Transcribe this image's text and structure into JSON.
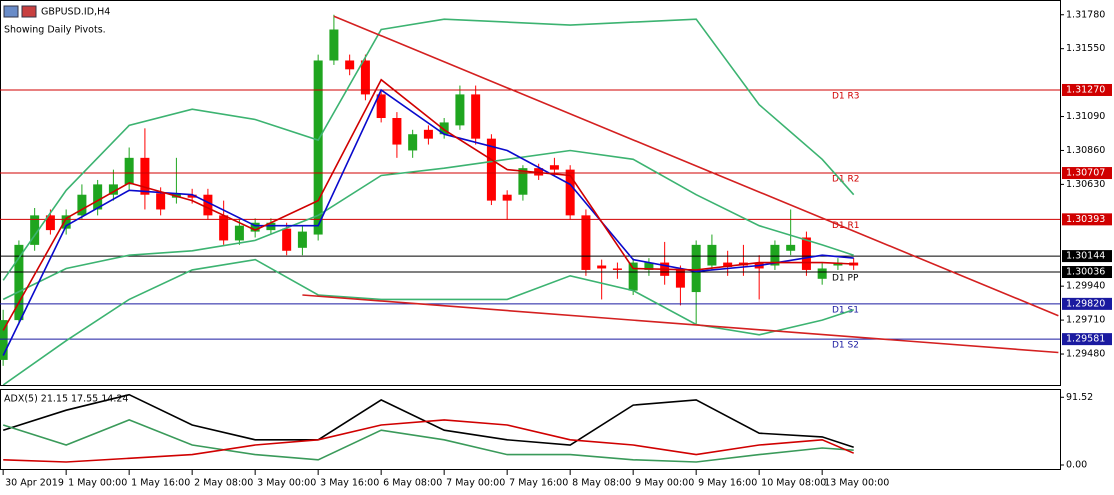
{
  "chart_data": [
    {
      "type": "candlestick",
      "title": "GBPUSD.ID,H4",
      "subtitle": "Showing Daily Pivots.",
      "x": [
        0,
        1,
        2,
        3,
        4,
        5,
        6,
        7,
        8,
        9,
        10,
        11,
        12,
        13,
        14,
        15,
        16,
        17,
        18,
        19,
        20,
        21,
        22,
        23,
        24,
        25,
        26,
        27,
        28,
        29,
        30,
        31,
        32,
        33,
        34,
        35,
        36,
        37,
        38,
        39,
        40,
        41,
        42,
        43,
        44,
        45,
        46,
        47,
        48,
        49,
        50,
        51,
        52,
        53,
        54
      ],
      "open": [
        1.2944,
        1.2971,
        1.3022,
        1.3042,
        1.3033,
        1.3042,
        1.3046,
        1.3056,
        1.3063,
        1.3081,
        1.3057,
        1.3054,
        1.3056,
        1.3056,
        1.3042,
        1.3025,
        1.3031,
        1.3032,
        1.3033,
        1.302,
        1.3029,
        1.3147,
        1.3147,
        1.3147,
        1.3124,
        1.3108,
        1.3086,
        1.31,
        1.3097,
        1.3103,
        1.3124,
        1.3094,
        1.3056,
        1.3056,
        1.3074,
        1.3076,
        1.3073,
        1.3042,
        1.3008,
        1.3006,
        1.2991,
        1.3005,
        1.301,
        1.3005,
        1.299,
        1.3008,
        1.301,
        1.301,
        1.301,
        1.3008,
        1.3018,
        1.3027,
        1.2999,
        1.3008,
        1.301
      ],
      "high": [
        1.2978,
        1.3025,
        1.3047,
        1.3046,
        1.3046,
        1.3063,
        1.3066,
        1.3073,
        1.3088,
        1.3101,
        1.3061,
        1.3081,
        1.306,
        1.306,
        1.3052,
        1.3039,
        1.304,
        1.304,
        1.3037,
        1.3035,
        1.3151,
        1.3178,
        1.3151,
        1.3151,
        1.3127,
        1.3112,
        1.31,
        1.3103,
        1.3108,
        1.313,
        1.313,
        1.3097,
        1.3059,
        1.3076,
        1.3077,
        1.3081,
        1.3076,
        1.3046,
        1.3012,
        1.301,
        1.3013,
        1.3013,
        1.3024,
        1.3008,
        1.3025,
        1.3029,
        1.3018,
        1.3022,
        1.3015,
        1.3025,
        1.3046,
        1.3031,
        1.301,
        1.3013,
        1.3013
      ],
      "low": [
        1.294,
        1.2968,
        1.3018,
        1.3029,
        1.3029,
        1.3039,
        1.3042,
        1.3052,
        1.3059,
        1.3046,
        1.3042,
        1.305,
        1.305,
        1.3039,
        1.3022,
        1.3022,
        1.3027,
        1.3029,
        1.3015,
        1.3015,
        1.3025,
        1.3144,
        1.3137,
        1.312,
        1.3105,
        1.3081,
        1.3081,
        1.309,
        1.3094,
        1.31,
        1.309,
        1.3049,
        1.3039,
        1.3052,
        1.3066,
        1.3069,
        1.3039,
        1.3001,
        1.2985,
        1.2999,
        1.2988,
        1.3001,
        1.2995,
        1.2981,
        1.2968,
        1.3005,
        1.3001,
        1.3001,
        1.2985,
        1.3005,
        1.3015,
        1.3001,
        1.2995,
        1.3005,
        1.3005
      ],
      "close": [
        1.2971,
        1.3022,
        1.3042,
        1.3032,
        1.3042,
        1.3056,
        1.3063,
        1.3063,
        1.3081,
        1.3056,
        1.3046,
        1.3057,
        1.3054,
        1.3042,
        1.3025,
        1.3035,
        1.3037,
        1.3037,
        1.3018,
        1.3031,
        1.3147,
        1.3168,
        1.3141,
        1.3124,
        1.3108,
        1.309,
        1.3097,
        1.3094,
        1.3105,
        1.3124,
        1.3094,
        1.3052,
        1.3052,
        1.3074,
        1.3069,
        1.3073,
        1.3042,
        1.3005,
        1.3006,
        1.3005,
        1.301,
        1.301,
        1.3001,
        1.2993,
        1.3022,
        1.3022,
        1.3007,
        1.3008,
        1.3006,
        1.3022,
        1.3022,
        1.3005,
        1.3006,
        1.301,
        1.3008
      ],
      "up_color": "#1fa51f",
      "down_color": "#ff0000",
      "series": [
        {
          "color": "#3cb371",
          "x": [
            0,
            4,
            8,
            12,
            16,
            20,
            24,
            28,
            32,
            36,
            40,
            44,
            48,
            52,
            54
          ],
          "values": [
            1.2998,
            1.3059,
            1.3103,
            1.3114,
            1.3107,
            1.3093,
            1.3168,
            1.3175,
            1.3173,
            1.3171,
            1.3173,
            1.3175,
            1.3117,
            1.308,
            1.3056
          ]
        },
        {
          "color": "#3cb371",
          "x": [
            0,
            4,
            8,
            12,
            16,
            20,
            24,
            28,
            32,
            36,
            40,
            44,
            48,
            52,
            54
          ],
          "values": [
            1.2985,
            1.3006,
            1.3015,
            1.3018,
            1.3025,
            1.3042,
            1.3069,
            1.3074,
            1.308,
            1.3086,
            1.308,
            1.3056,
            1.3035,
            1.3022,
            1.3015
          ]
        },
        {
          "color": "#3cb371",
          "x": [
            0,
            4,
            8,
            12,
            16,
            20,
            24,
            28,
            32,
            36,
            40,
            44,
            48,
            52,
            54
          ],
          "values": [
            1.2927,
            1.2957,
            1.2985,
            1.3005,
            1.3012,
            1.2988,
            1.2985,
            1.2985,
            1.2985,
            1.3001,
            1.2991,
            1.2968,
            1.2961,
            1.2971,
            1.2978
          ]
        },
        {
          "color": "#0a0acc",
          "x": [
            0,
            4,
            8,
            12,
            16,
            20,
            24,
            28,
            32,
            36,
            40,
            44,
            48,
            52,
            54
          ],
          "values": [
            1.2947,
            1.3035,
            1.3059,
            1.3056,
            1.3035,
            1.3035,
            1.3127,
            1.3097,
            1.3086,
            1.3063,
            1.3012,
            1.3004,
            1.3008,
            1.3015,
            1.3013
          ]
        },
        {
          "color": "#d00000",
          "x": [
            0,
            4,
            8,
            12,
            16,
            20,
            24,
            28,
            32,
            36,
            40,
            44,
            48,
            52,
            54
          ],
          "values": [
            1.2964,
            1.304,
            1.3064,
            1.3052,
            1.3032,
            1.3052,
            1.3134,
            1.31,
            1.3073,
            1.3069,
            1.3006,
            1.3005,
            1.301,
            1.301,
            1.3009
          ]
        },
        {
          "color": "#d42020",
          "x": [
            21,
            67
          ],
          "values": [
            1.3177,
            1.2974
          ]
        },
        {
          "color": "#d42020",
          "x": [
            19,
            67
          ],
          "values": [
            1.2988,
            1.2949
          ]
        }
      ],
      "hlines": [
        {
          "name": "D1 R3",
          "value": 1.3127,
          "label": "1.31270",
          "color": "#d00000"
        },
        {
          "name": "D1 R2",
          "value": 1.30707,
          "label": "1.30707",
          "color": "#d00000"
        },
        {
          "name": "D1 R1",
          "value": 1.30393,
          "label": "1.30393",
          "color": "#d00000"
        },
        {
          "name": "D1 PP",
          "value": 1.30036,
          "label": "1.30036",
          "color": "#000000"
        },
        {
          "value": 1.30144,
          "label": "1.30144",
          "color": "#000000"
        },
        {
          "name": "D1 S1",
          "value": 1.2982,
          "label": "1.29820",
          "color": "#1a1aa0"
        },
        {
          "name": "D1 S2",
          "value": 1.29581,
          "label": "1.29581",
          "color": "#1a1aa0"
        }
      ],
      "xlim": [
        -0.2,
        67.1
      ],
      "ylim": [
        1.2927,
        1.3188
      ],
      "yticks": [
        {
          "value": 1.3178,
          "label": "1.31780"
        },
        {
          "value": 1.3155,
          "label": "1.31550"
        },
        {
          "value": 1.3109,
          "label": "1.31090"
        },
        {
          "value": 1.3086,
          "label": "1.30860"
        },
        {
          "value": 1.3063,
          "label": "1.30630"
        },
        {
          "value": 1.2994,
          "label": "1.29940"
        },
        {
          "value": 1.2971,
          "label": "1.29710"
        },
        {
          "value": 1.2948,
          "label": "1.29480"
        }
      ],
      "xticks": [
        {
          "value": 0,
          "label": "30 Apr 2019"
        },
        {
          "value": 4,
          "label": "1 May 00:00"
        },
        {
          "value": 8,
          "label": "1 May 16:00"
        },
        {
          "value": 12,
          "label": "2 May 08:00"
        },
        {
          "value": 16,
          "label": "3 May 00:00"
        },
        {
          "value": 20,
          "label": "3 May 16:00"
        },
        {
          "value": 24,
          "label": "6 May 08:00"
        },
        {
          "value": 28,
          "label": "7 May 00:00"
        },
        {
          "value": 32,
          "label": "7 May 16:00"
        },
        {
          "value": 36,
          "label": "8 May 08:00"
        },
        {
          "value": 40,
          "label": "9 May 00:00"
        },
        {
          "value": 44,
          "label": "9 May 16:00"
        },
        {
          "value": 48,
          "label": "10 May 08:00"
        },
        {
          "value": 52,
          "label": "13 May 00:00"
        }
      ]
    },
    {
      "type": "line",
      "title": "ADX(5) 21.15 17.55 14.24",
      "series": [
        {
          "color": "#000000",
          "x": [
            0,
            4,
            8,
            12,
            16,
            20,
            24,
            28,
            32,
            36,
            40,
            44,
            48,
            52,
            54
          ],
          "values": [
            47,
            74,
            95,
            54,
            34,
            34,
            88,
            47,
            34,
            27,
            81,
            88,
            43,
            38,
            24
          ]
        },
        {
          "color": "#3a9a5a",
          "x": [
            0,
            4,
            8,
            12,
            16,
            20,
            24,
            28,
            32,
            36,
            40,
            44,
            48,
            52,
            54
          ],
          "values": [
            54,
            27,
            61,
            27,
            14,
            7,
            47,
            34,
            14,
            14,
            7,
            4,
            14,
            23,
            20
          ]
        },
        {
          "color": "#d00000",
          "x": [
            0,
            4,
            8,
            12,
            16,
            20,
            24,
            28,
            32,
            36,
            40,
            44,
            48,
            52,
            54
          ],
          "values": [
            7,
            4,
            9,
            14,
            27,
            34,
            54,
            61,
            54,
            34,
            27,
            14,
            27,
            34,
            16
          ]
        }
      ],
      "ylim": [
        0,
        100
      ],
      "yticks": [
        91.52,
        {
          "value": 0,
          "label": "0.00"
        }
      ]
    }
  ]
}
